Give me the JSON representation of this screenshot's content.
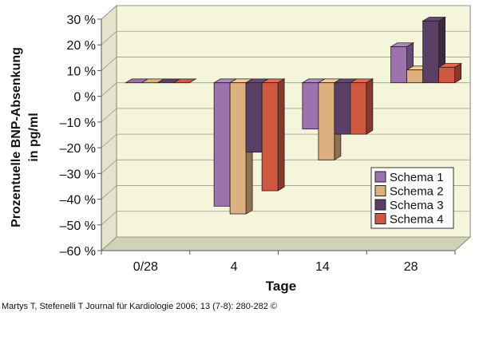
{
  "chart_data": {
    "type": "bar",
    "title": "",
    "xlabel": "Tage",
    "ylabel": "Prozentuelle BNP-Absenkung in pg/ml",
    "ylabel_lines": [
      "Prozentuelle BNP-Absenkung",
      "in pg/ml"
    ],
    "categories": [
      "0/28",
      "4",
      "14",
      "28"
    ],
    "ylim": [
      -60,
      30
    ],
    "yticks": [
      30,
      20,
      10,
      0,
      -10,
      -20,
      -30,
      -40,
      -50,
      -60
    ],
    "ytick_labels": [
      "30 %",
      "20 %",
      "10 %",
      "0 %",
      "–10 %",
      "–20 %",
      "–30 %",
      "–40 %",
      "–50 %",
      "–60 %"
    ],
    "grid": true,
    "legend_position": "bottom-right",
    "series": [
      {
        "name": "Schema 1",
        "color": "#9c73ad",
        "values": [
          0,
          -48,
          -18,
          14
        ]
      },
      {
        "name": "Schema 2",
        "color": "#ddb07f",
        "values": [
          0,
          -51,
          -30,
          5
        ]
      },
      {
        "name": "Schema 3",
        "color": "#5a3f66",
        "values": [
          0,
          -27,
          -20,
          24
        ]
      },
      {
        "name": "Schema 4",
        "color": "#cf5840",
        "values": [
          0,
          -42,
          -20,
          6
        ]
      }
    ]
  },
  "caption": "Martys T, Stefenelli T Journal für Kardiologie 2006; 13 (7-8): 280-282 ©"
}
